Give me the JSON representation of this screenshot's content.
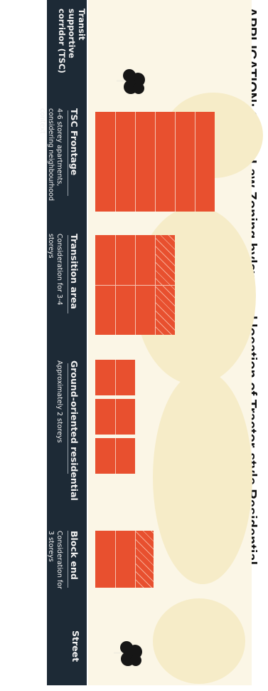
{
  "heading": "APPLICATION: Storey Law Zoning bylaws and location of Tractor-style Residential",
  "transit_corridor": "Transit supportive corridor (TSC)",
  "categories": [
    {
      "title": "TSC Frontage",
      "description": "4-6 storey apartments, considering neighbourhood context"
    },
    {
      "title": "Transition area",
      "description": "Consideration for 3-4 storeys"
    },
    {
      "title": "Ground-oriented residential",
      "description": "Approximately 2 storeys"
    },
    {
      "title": "Block end",
      "description": "Consideration for 3 storeys"
    }
  ],
  "street_label": "Street",
  "colors": {
    "band": "#1d2a36",
    "building": "#e8502f",
    "ground": "#fbf6e6",
    "tree": "#161616"
  },
  "icons": [
    "tree-icon"
  ]
}
